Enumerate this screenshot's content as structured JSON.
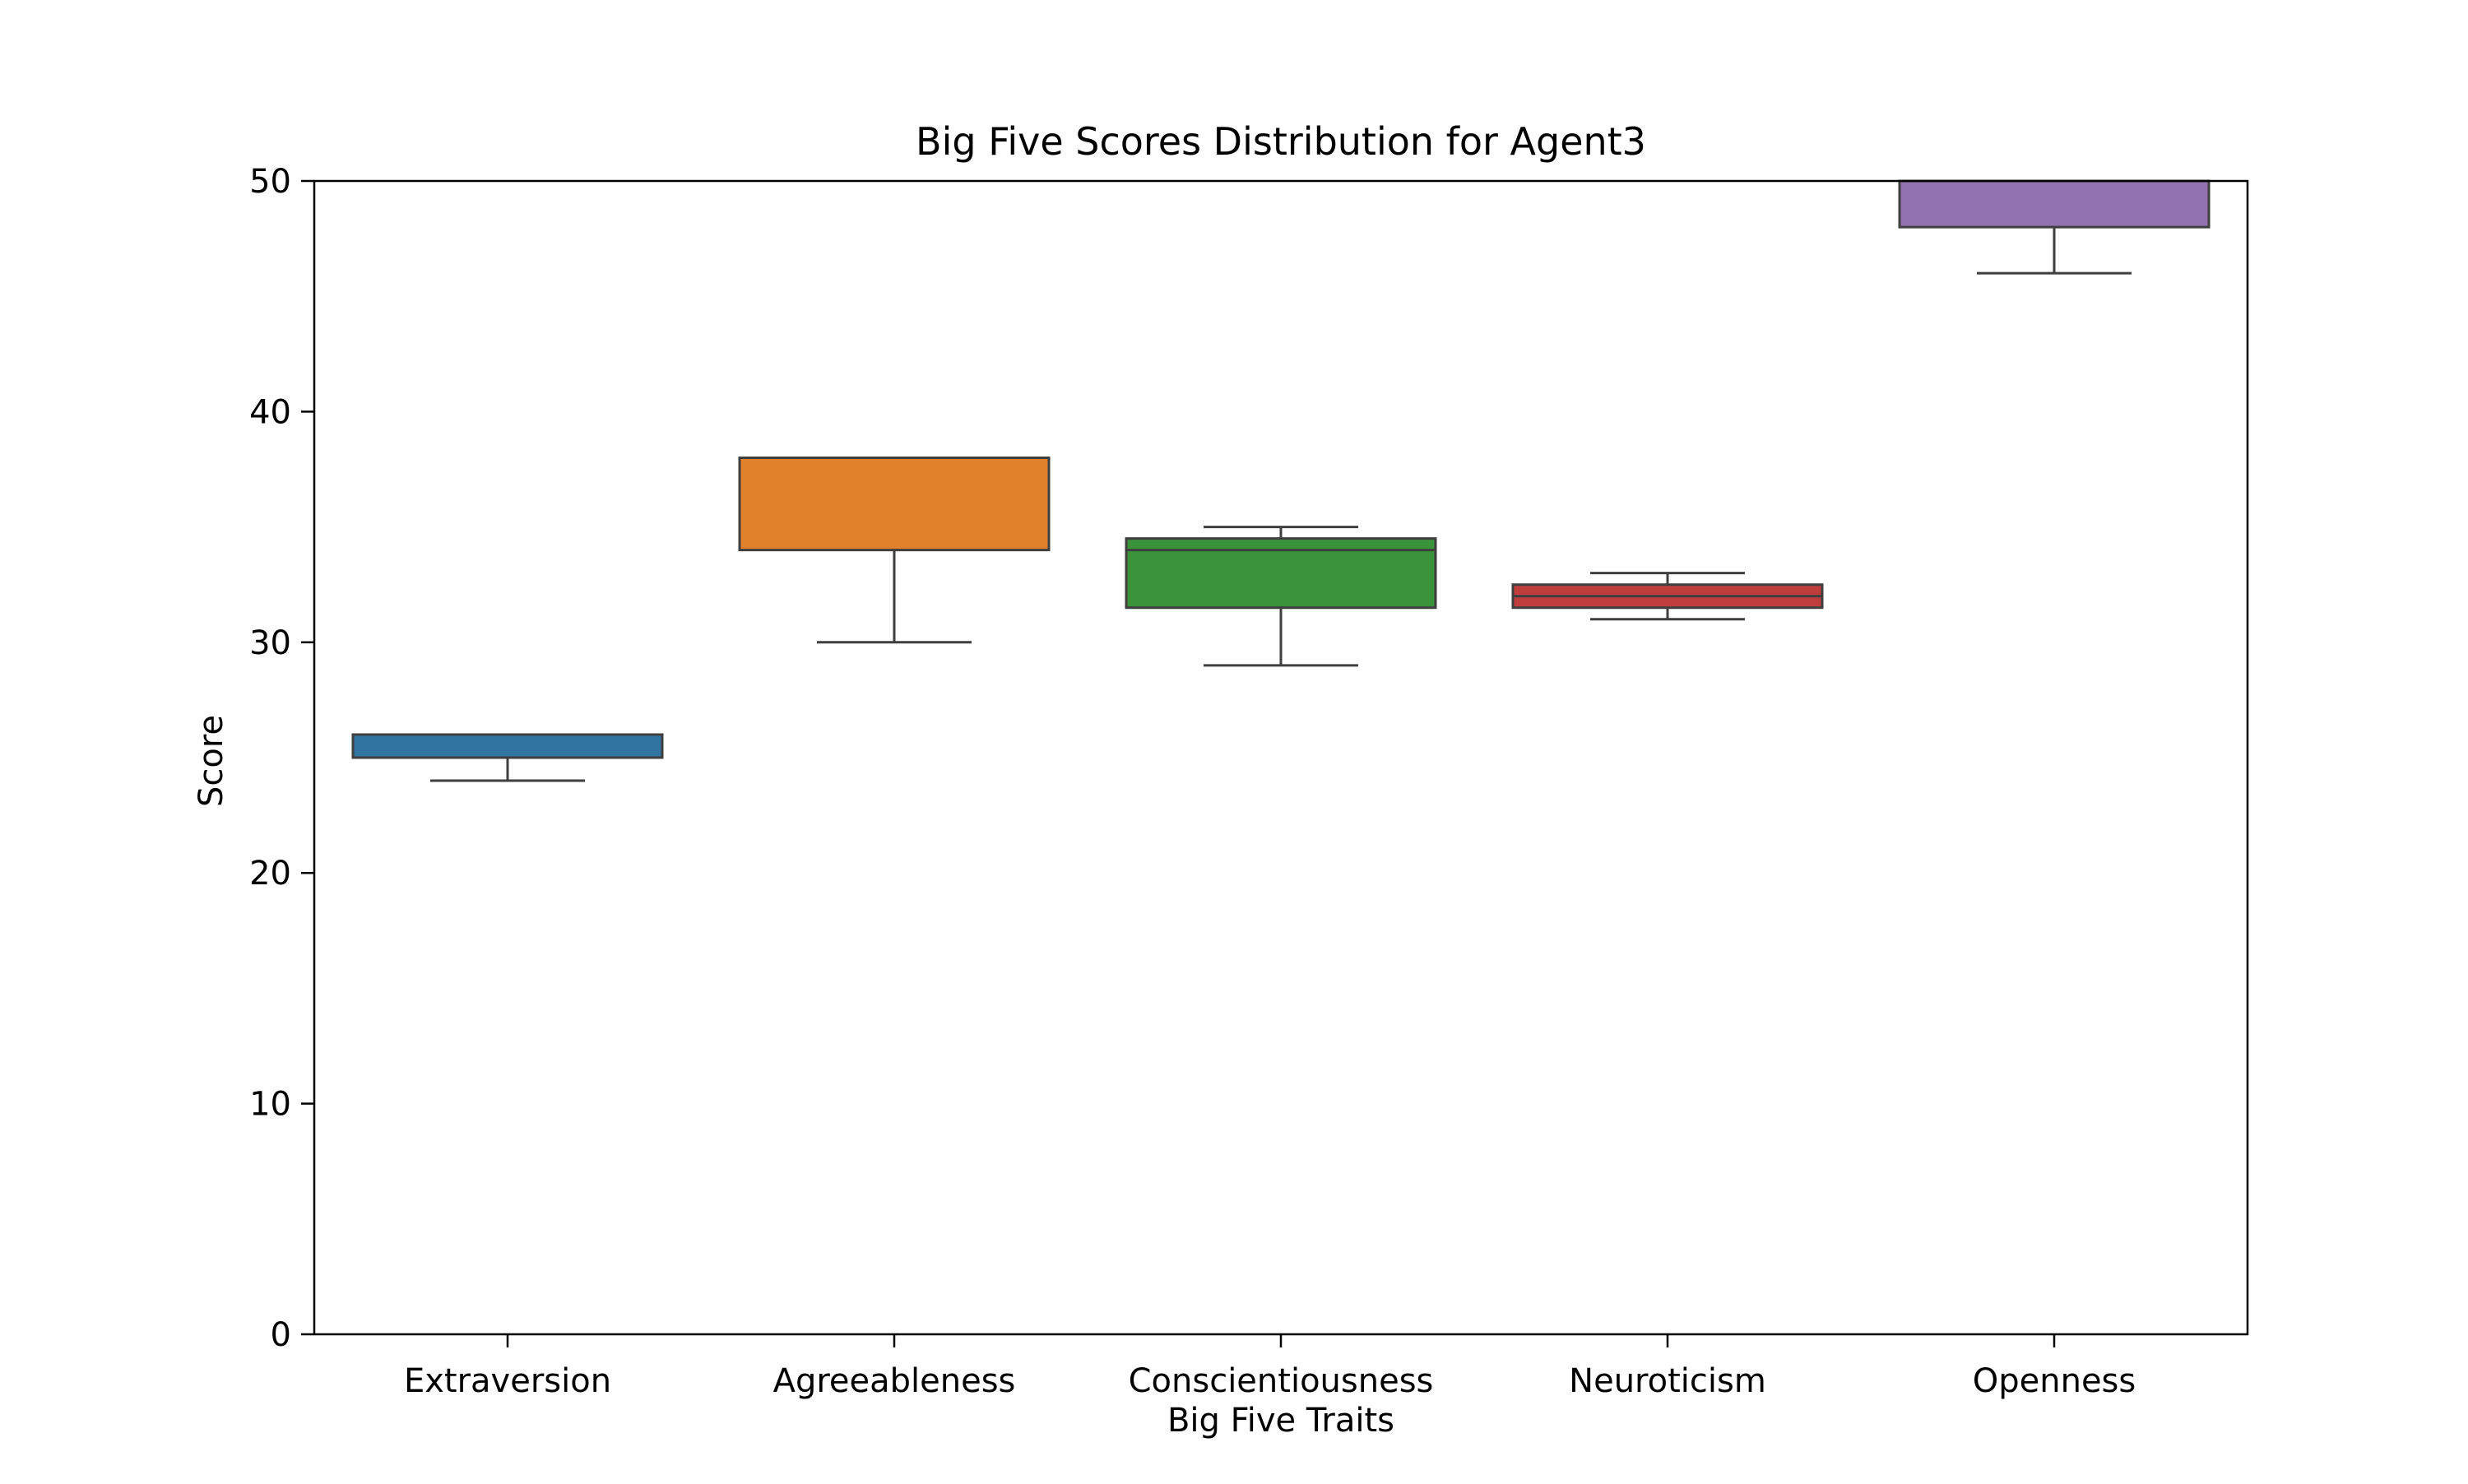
{
  "chart_data": {
    "type": "box",
    "title": "Big Five Scores Distribution for Agent3",
    "xlabel": "Big Five Traits",
    "ylabel": "Score",
    "ylim": [
      0,
      50
    ],
    "yticks": [
      0,
      10,
      20,
      30,
      40,
      50
    ],
    "categories": [
      "Extraversion",
      "Agreeableness",
      "Conscientiousness",
      "Neuroticism",
      "Openness"
    ],
    "boxes": [
      {
        "category": "Extraversion",
        "whisker_low": 24,
        "q1": 25,
        "median": 25,
        "q3": 26,
        "whisker_high": 26,
        "color": "#3274a1"
      },
      {
        "category": "Agreeableness",
        "whisker_low": 30,
        "q1": 34,
        "median": 38,
        "q3": 38,
        "whisker_high": 38,
        "color": "#e1812c"
      },
      {
        "category": "Conscientiousness",
        "whisker_low": 29,
        "q1": 31.5,
        "median": 34,
        "q3": 34.5,
        "whisker_high": 35,
        "color": "#3a923a"
      },
      {
        "category": "Neuroticism",
        "whisker_low": 31,
        "q1": 31.5,
        "median": 32,
        "q3": 32.5,
        "whisker_high": 33,
        "color": "#c03d3e"
      },
      {
        "category": "Openness",
        "whisker_low": 46,
        "q1": 48,
        "median": 50,
        "q3": 50,
        "whisker_high": 50,
        "color": "#9372b2"
      }
    ],
    "grid": false,
    "legend": "none"
  }
}
